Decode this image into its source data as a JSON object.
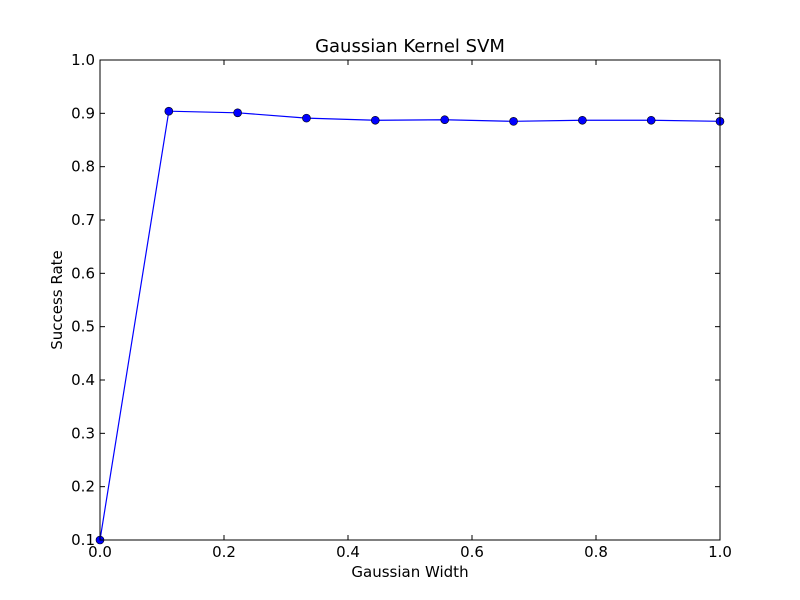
{
  "chart_data": {
    "type": "line",
    "title": "Gaussian Kernel SVM",
    "xlabel": "Gaussian Width",
    "ylabel": "Success Rate",
    "xlim": [
      0.0,
      1.0
    ],
    "ylim": [
      0.1,
      1.0
    ],
    "xticks": [
      "0.0",
      "0.2",
      "0.4",
      "0.6",
      "0.8",
      "1.0"
    ],
    "yticks": [
      "0.1",
      "0.2",
      "0.3",
      "0.4",
      "0.5",
      "0.6",
      "0.7",
      "0.8",
      "0.9",
      "1.0"
    ],
    "grid": false,
    "series": [
      {
        "color": "#0000ff",
        "marker": "circle",
        "x": [
          0.0,
          0.111,
          0.222,
          0.333,
          0.444,
          0.556,
          0.667,
          0.778,
          0.889,
          1.0
        ],
        "y": [
          0.1,
          0.904,
          0.901,
          0.891,
          0.887,
          0.888,
          0.885,
          0.887,
          0.887,
          0.885
        ]
      }
    ]
  }
}
